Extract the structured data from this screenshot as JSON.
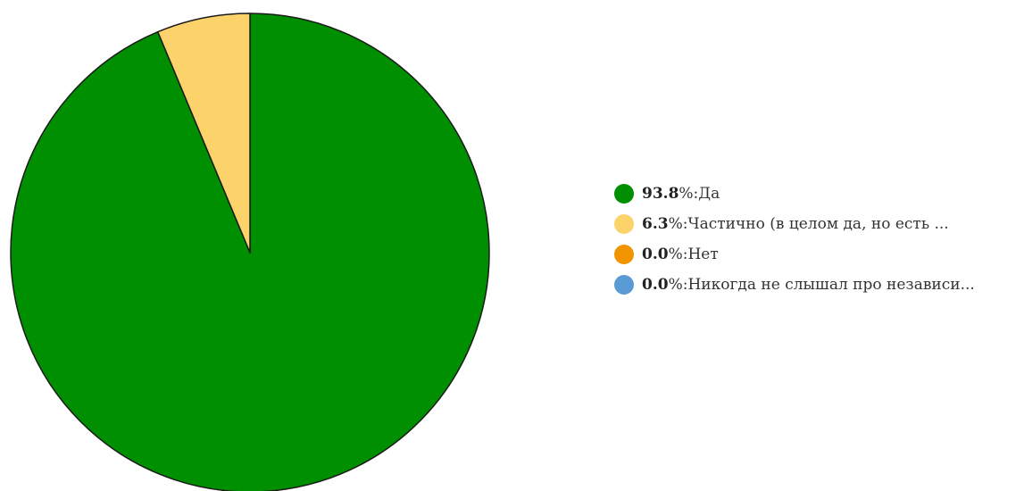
{
  "chart_data": {
    "type": "pie",
    "title": "",
    "slices": [
      {
        "label": "Да",
        "value": 93.8,
        "value_text": "93.8",
        "color": "#008f00"
      },
      {
        "label": "Частично (в целом да, но есть ...",
        "value": 6.3,
        "value_text": "6.3",
        "color": "#fbd36a"
      },
      {
        "label": "Нет",
        "value": 0.0,
        "value_text": "0.0",
        "color": "#f29400"
      },
      {
        "label": "Никогда не слышал про независи...",
        "value": 0.0,
        "value_text": "0.0",
        "color": "#5b9bd5"
      }
    ],
    "legend": {
      "position": "right",
      "percent_suffix": "%",
      "separator": ": "
    },
    "start_angle": "top",
    "direction": "clockwise"
  }
}
